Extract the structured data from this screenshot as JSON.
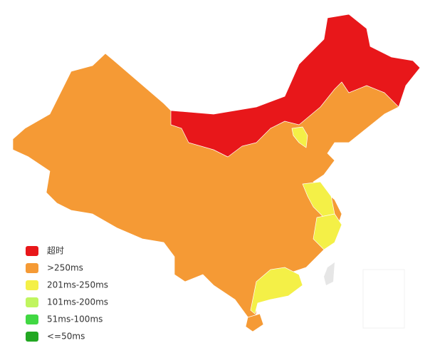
{
  "legend": {
    "items": [
      {
        "label": "超时",
        "color": "#e8171a"
      },
      {
        "label": ">250ms",
        "color": "#f59a35"
      },
      {
        "label": "201ms-250ms",
        "color": "#f4f047"
      },
      {
        "label": "101ms-200ms",
        "color": "#c0f55f"
      },
      {
        "label": "51ms-100ms",
        "color": "#41d843"
      },
      {
        "label": "<=50ms",
        "color": "#22a722"
      }
    ]
  }
}
